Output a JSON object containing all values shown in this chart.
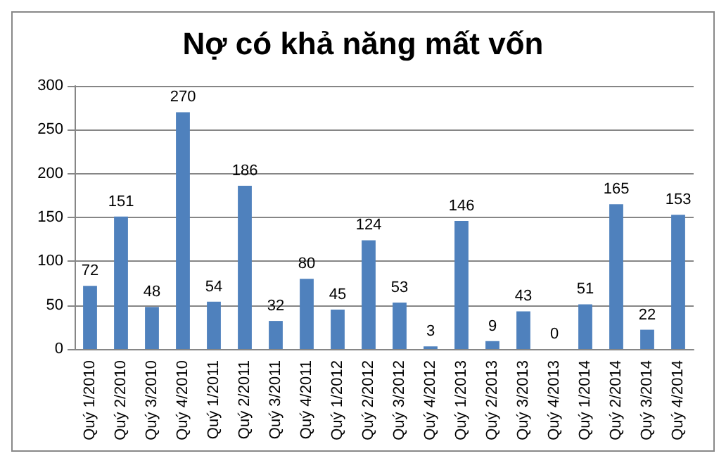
{
  "chart_data": {
    "type": "bar",
    "title": "Nợ có khả năng mất vốn",
    "categories": [
      "Quý 1/2010",
      "Quý 2/2010",
      "Quý 3/2010",
      "Quý 4/2010",
      "Quý 1/2011",
      "Quý 2/2011",
      "Quý 3/2011",
      "Quý 4/2011",
      "Quý 1/2012",
      "Quý 2/2012",
      "Quý 3/2012",
      "Quý 4/2012",
      "Quý 1/2013",
      "Quý 2/2013",
      "Quý 3/2013",
      "Quý 4/2013",
      "Quý 1/2014",
      "Quý 2/2014",
      "Quý 3/2014",
      "Quý 4/2014"
    ],
    "values": [
      72,
      151,
      48,
      270,
      54,
      186,
      32,
      80,
      45,
      124,
      53,
      3,
      146,
      9,
      43,
      0,
      51,
      165,
      22,
      153
    ],
    "color": "#4f81bd",
    "ylim": [
      0,
      300
    ],
    "yticks": [
      0,
      50,
      100,
      150,
      200,
      250,
      300
    ],
    "grid": "y",
    "data_labels": true
  }
}
